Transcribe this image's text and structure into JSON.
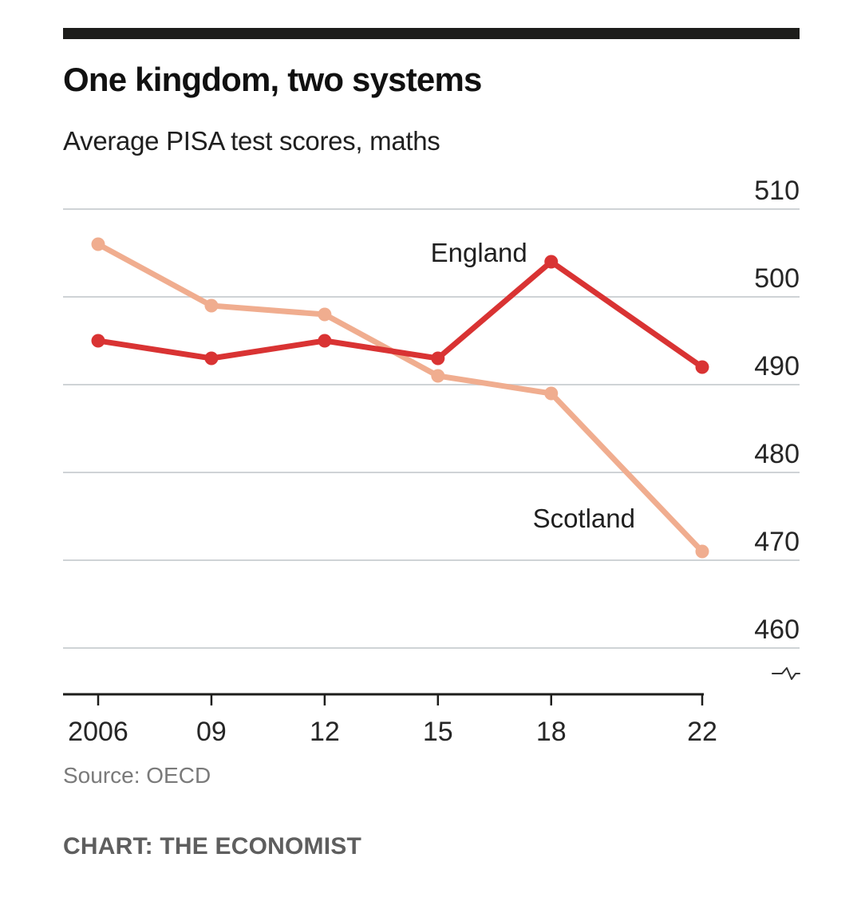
{
  "header": {
    "title": "One kingdom, two systems",
    "subtitle": "Average PISA test scores, maths"
  },
  "footer": {
    "source": "Source: OECD",
    "credit": "CHART: THE ECONOMIST"
  },
  "colors": {
    "england": "#d93333",
    "scotland": "#f0ad8f",
    "gridline": "#cfd3d6",
    "axis": "#1d1d1b"
  },
  "chart_data": {
    "type": "line",
    "title": "One kingdom, two systems",
    "subtitle": "Average PISA test scores, maths",
    "xlabel": "",
    "ylabel": "",
    "x": [
      2006,
      2009,
      2012,
      2015,
      2018,
      2022
    ],
    "x_tick_labels": [
      "2006",
      "09",
      "12",
      "15",
      "18",
      "22"
    ],
    "y_ticks": [
      460,
      470,
      480,
      490,
      500,
      510
    ],
    "y_tick_labels": [
      "460",
      "470",
      "480",
      "490",
      "500",
      "510"
    ],
    "ylim": [
      456,
      510
    ],
    "y_axis_broken": true,
    "y_axis_side": "right",
    "grid": true,
    "series": [
      {
        "name": "England",
        "label": "England",
        "values": [
          495,
          493,
          495,
          493,
          504,
          492
        ]
      },
      {
        "name": "Scotland",
        "label": "Scotland",
        "values": [
          506,
          499,
          498,
          491,
          489,
          471
        ]
      }
    ]
  }
}
